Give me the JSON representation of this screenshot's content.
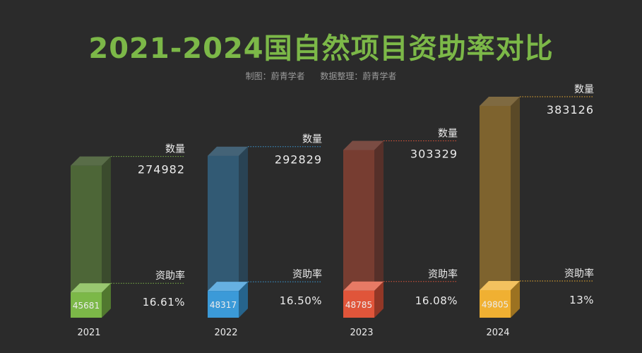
{
  "title": "2021-2024国自然项目资助率对比",
  "credits": {
    "chart_by": "制图：蔚青学者",
    "data_by": "数据整理：蔚青学者"
  },
  "colors": {
    "background": "#2b2b2b",
    "title": "#7cb848",
    "series": [
      "#7cb848",
      "#3b9ad8",
      "#e0553a",
      "#f0b032"
    ]
  },
  "chart_data": {
    "type": "bar",
    "title": "2021-2024国自然项目资助率对比",
    "categories": [
      "2021",
      "2022",
      "2023",
      "2024"
    ],
    "series": [
      {
        "name": "数量",
        "values": [
          274982,
          292829,
          303329,
          383126
        ]
      },
      {
        "name": "",
        "values": [
          45681,
          48317,
          48785,
          49805
        ]
      }
    ],
    "rate_label": "资助率",
    "rates": [
      "16.61%",
      "16.50%",
      "16.08%",
      "13%"
    ],
    "count_label": "数量",
    "legend": "none",
    "grid": false
  }
}
